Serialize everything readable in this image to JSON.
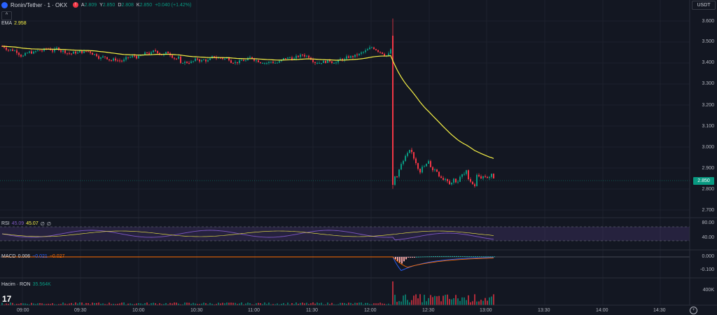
{
  "header": {
    "symbol": "Ronin/Tether · 1 · OKX",
    "status_badge": "!",
    "ohlc": [
      {
        "k": "A",
        "v": "2.809"
      },
      {
        "k": "Y",
        "v": "2.850"
      },
      {
        "k": "D",
        "v": "2.808"
      },
      {
        "k": "K",
        "v": "2.850"
      },
      {
        "k": "",
        "v": "+0.040 (+1.42%)"
      }
    ]
  },
  "currency": "USDT",
  "collapse_icon": "^",
  "ema": {
    "name": "EMA",
    "value": "2.958"
  },
  "rsi": {
    "name": "RSI",
    "v1": "45.09",
    "v2": "45.07",
    "v3": "∅",
    "v4": "∅"
  },
  "macd": {
    "name": "MACD",
    "v1": "0.006",
    "v2": "−0.021",
    "v3": "−0.027"
  },
  "volume": {
    "name": "Hacim · RON",
    "value": "35.564K"
  },
  "price_axis": [
    "3.600",
    "3.500",
    "3.400",
    "3.300",
    "3.200",
    "3.100",
    "3.000",
    "2.900",
    "2.800",
    "2.700"
  ],
  "last_price": "2.850",
  "rsi_axis": [
    "80.00",
    "40.00"
  ],
  "macd_axis": [
    "0.000",
    "-0.100"
  ],
  "volume_axis": [
    "400K"
  ],
  "time_axis": [
    "09:00",
    "09:30",
    "10:00",
    "10:30",
    "11:00",
    "11:30",
    "12:00",
    "12:30",
    "13:00",
    "13:30",
    "14:00",
    "14:30"
  ],
  "tv_logo": "17",
  "colors": {
    "up": "#089981",
    "down": "#f23645",
    "ema": "#f7f146",
    "rsi": "#7e57c2",
    "macd": "#2962ff",
    "signal": "#ff6d00"
  }
}
